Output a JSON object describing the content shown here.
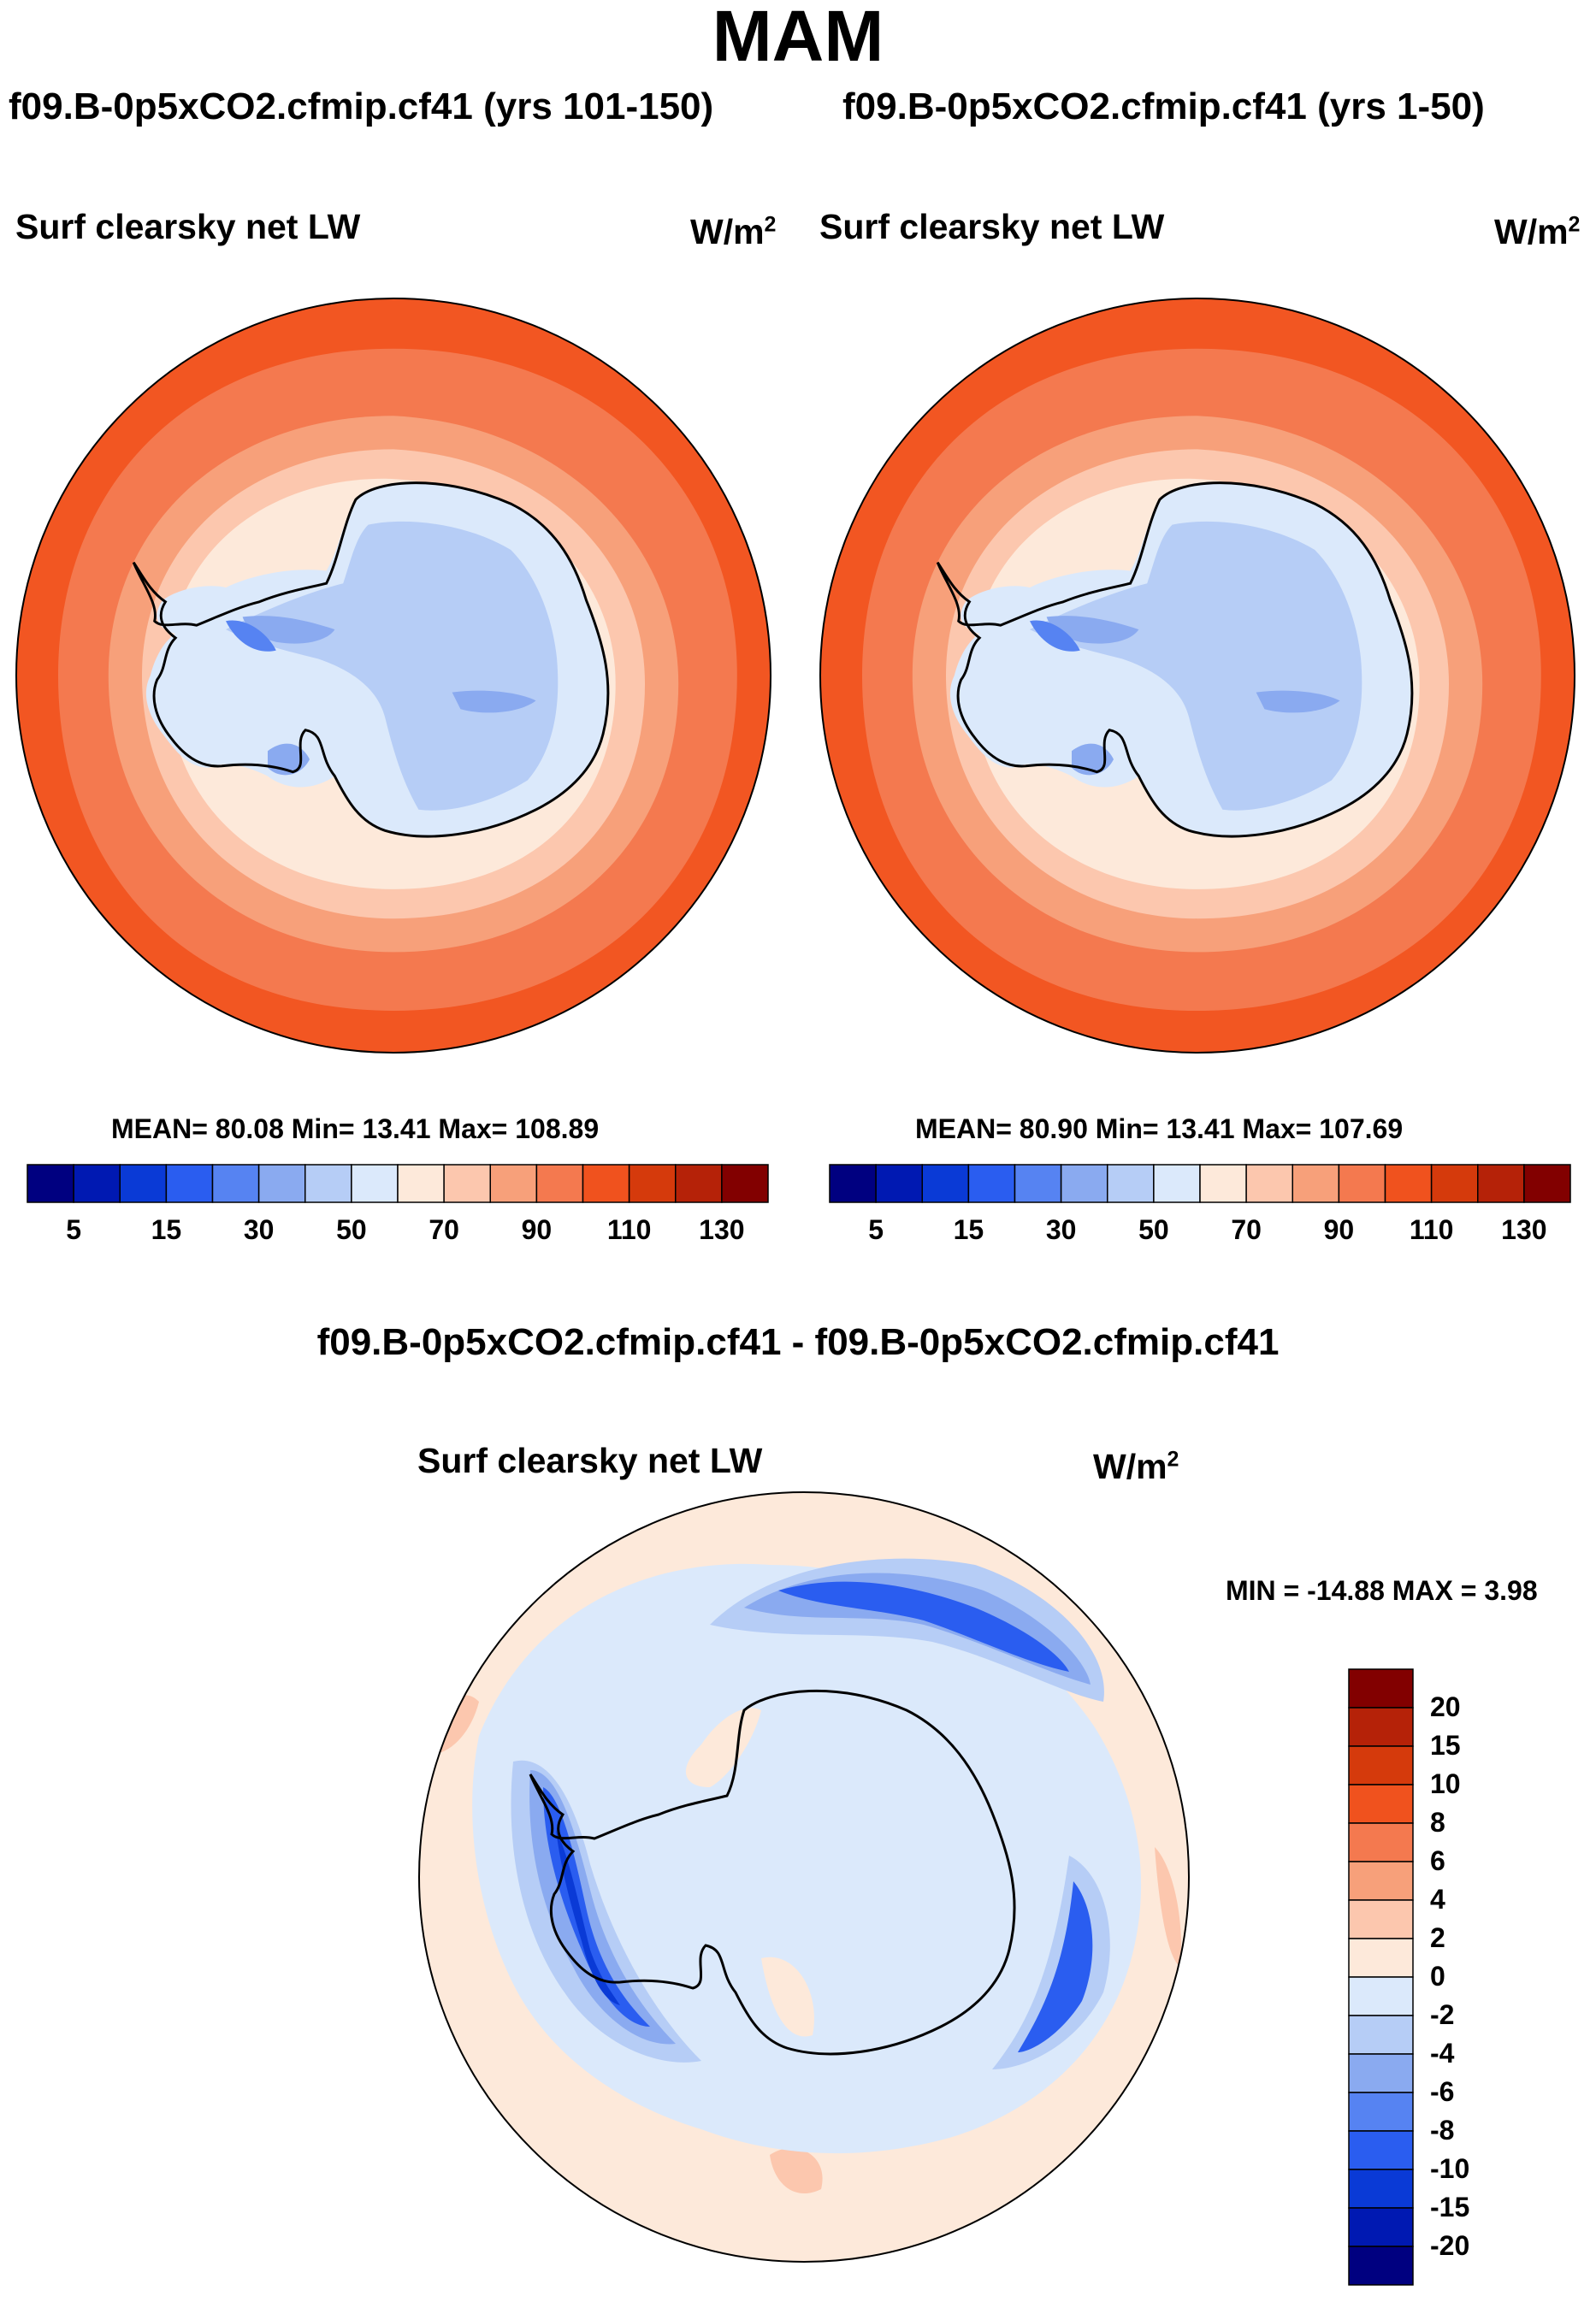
{
  "title": "MAM",
  "panels": [
    {
      "case": "f09.B-0p5xCO2.cfmip.cf41 (yrs 101-150)",
      "variable": "Surf clearsky net LW",
      "units": "W/m",
      "units_exp": "2",
      "stats": "MEAN=  80.08  Min=  13.41  Max= 108.89",
      "mean": 80.08,
      "min": 13.41,
      "max": 108.89
    },
    {
      "case": "f09.B-0p5xCO2.cfmip.cf41 (yrs 1-50)",
      "variable": "Surf clearsky net LW",
      "units": "W/m",
      "units_exp": "2",
      "stats": "MEAN=  80.90  Min=  13.41  Max= 107.69",
      "mean": 80.9,
      "min": 13.41,
      "max": 107.69
    }
  ],
  "diff": {
    "case": "f09.B-0p5xCO2.cfmip.cf41 - f09.B-0p5xCO2.cfmip.cf41",
    "variable": "Surf clearsky net LW",
    "units": "W/m",
    "units_exp": "2",
    "stats": "MIN = -14.88 MAX =   3.98",
    "min": -14.88,
    "max": 3.98
  },
  "colorbar_abs": {
    "labels": [
      "5",
      "15",
      "30",
      "50",
      "70",
      "90",
      "110",
      "130"
    ],
    "colors": [
      "#000080",
      "#0019b2",
      "#0a3ad6",
      "#2a5df0",
      "#5683f2",
      "#8aaaf0",
      "#b6cdf6",
      "#dbe9fb",
      "#fde9da",
      "#fcc7ae",
      "#f7a07a",
      "#f4794f",
      "#f0521e",
      "#d53a0c",
      "#b52208",
      "#820000"
    ]
  },
  "colorbar_diff": {
    "labels": [
      "20",
      "15",
      "10",
      "8",
      "6",
      "4",
      "2",
      "0",
      "-2",
      "-4",
      "-6",
      "-8",
      "-10",
      "-15",
      "-20"
    ],
    "colors": [
      "#820000",
      "#b52208",
      "#d53a0c",
      "#f0521e",
      "#f4794f",
      "#f7a07a",
      "#fcc7ae",
      "#fde9da",
      "#dbe9fb",
      "#b6cdf6",
      "#8aaaf0",
      "#5683f2",
      "#2a5df0",
      "#0a3ad6",
      "#0019b2",
      "#000080"
    ]
  },
  "map_colors": {
    "ocean_far": "#f25622",
    "ocean_mid": "#f4794f",
    "ice_edge1": "#f7a07a",
    "ice_edge2": "#fcc7ae",
    "ice_edge3": "#fde9da",
    "land1": "#dbe9fb",
    "land2": "#b6cdf6",
    "land3": "#8aaaf0",
    "land4": "#5683f2",
    "diff_bg": "#fde9da",
    "diff_neg1": "#dbe9fb",
    "diff_neg2": "#b6cdf6",
    "diff_neg3": "#8aaaf0",
    "diff_neg4": "#2a5df0",
    "diff_neg5": "#0a3ad6",
    "diff_pos": "#fcc7ae",
    "coast": "#000000"
  }
}
